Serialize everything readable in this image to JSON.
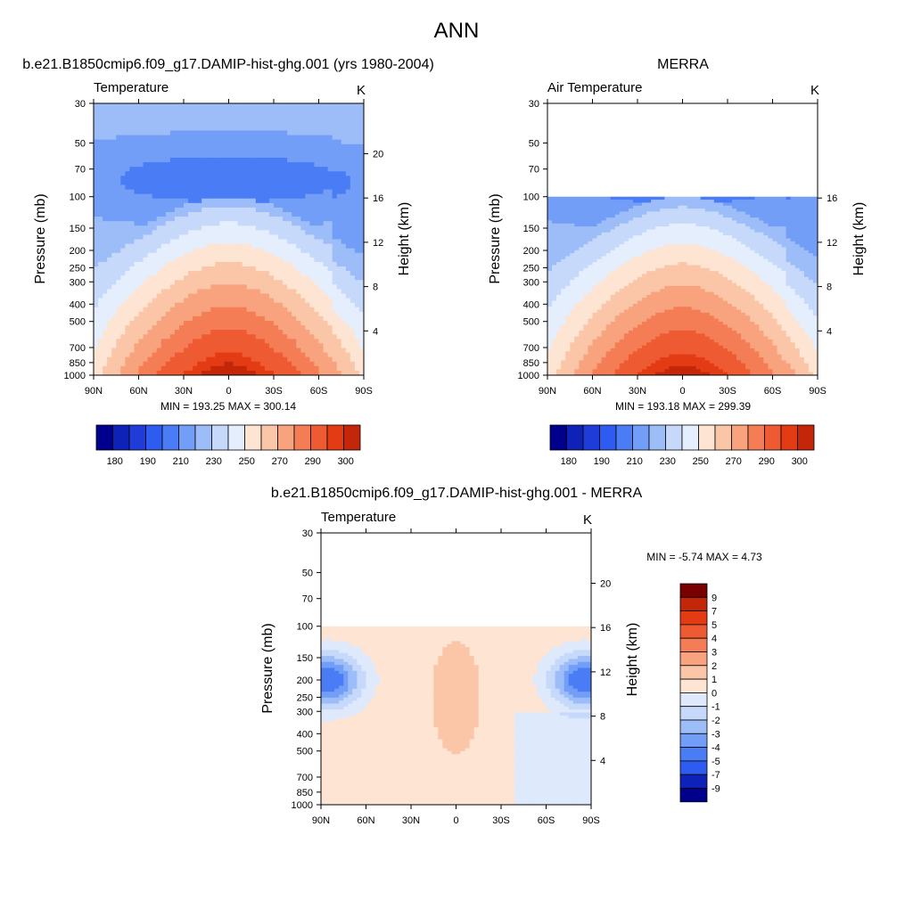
{
  "page_title": "ANN",
  "colors": {
    "cold": [
      "#00008c",
      "#0f22b8",
      "#1f3cd8",
      "#2f5cf0",
      "#4a7df5",
      "#729ef7",
      "#9dbdf9",
      "#c6d9fb",
      "#e4eefd"
    ],
    "warm": [
      "#fde4d3",
      "#fbc6a8",
      "#f8a27e",
      "#f47d56",
      "#ee5a32",
      "#e33c14",
      "#c4260a",
      "#9a1004",
      "#790000"
    ],
    "diff_neg": [
      "#00008c",
      "#0f22b8",
      "#2f5cf0",
      "#4a7df5",
      "#729ef7",
      "#9dbdf9",
      "#c6d9fb",
      "#dfe9fc"
    ],
    "diff_pos": [
      "#fde4d3",
      "#fbc6a8",
      "#f8a27e",
      "#f47d56",
      "#ee5a32",
      "#e33c14",
      "#c4260a",
      "#790000"
    ]
  },
  "chart_data": [
    {
      "type": "heatmap",
      "title": "b.e21.B1850cmip6.f09_g17.DAMIP-hist-ghg.001 (yrs 1980-2004)",
      "subtitle": "Temperature",
      "units": "K",
      "xlabel": "",
      "ylabel": "Pressure (mb)",
      "ylabel_right": "Height (km)",
      "x_ticks": [
        "90N",
        "60N",
        "30N",
        "0",
        "30S",
        "60S",
        "90S"
      ],
      "y_ticks": [
        30,
        50,
        70,
        100,
        150,
        200,
        250,
        300,
        400,
        500,
        700,
        850,
        1000
      ],
      "height_ticks": [
        4,
        8,
        12,
        16,
        20
      ],
      "ylim": [
        1000,
        30
      ],
      "xlim": [
        90,
        -90
      ],
      "pressure_top_data": 30,
      "stats": "MIN = 193.25  MAX = 300.14",
      "min": 193.25,
      "max": 300.14,
      "colorbar": {
        "labels": [
          "180",
          "190",
          "210",
          "230",
          "250",
          "270",
          "290",
          "300"
        ],
        "levels": [
          180,
          185,
          190,
          200,
          210,
          220,
          230,
          240,
          250,
          260,
          270,
          280,
          290,
          295,
          300
        ]
      }
    },
    {
      "type": "heatmap",
      "title": "MERRA",
      "subtitle": "Air Temperature",
      "units": "K",
      "xlabel": "",
      "ylabel": "Pressure (mb)",
      "ylabel_right": "Height (km)",
      "x_ticks": [
        "90N",
        "60N",
        "30N",
        "0",
        "30S",
        "60S",
        "90S"
      ],
      "y_ticks": [
        30,
        50,
        70,
        100,
        150,
        200,
        250,
        300,
        400,
        500,
        700,
        850,
        1000
      ],
      "height_ticks": [
        4,
        8,
        12,
        16
      ],
      "ylim": [
        1000,
        30
      ],
      "xlim": [
        90,
        -90
      ],
      "pressure_top_data": 100,
      "stats": "MIN = 193.18  MAX = 299.39",
      "min": 193.18,
      "max": 299.39,
      "colorbar": {
        "labels": [
          "180",
          "190",
          "210",
          "230",
          "250",
          "270",
          "290",
          "300"
        ],
        "levels": [
          180,
          185,
          190,
          200,
          210,
          220,
          230,
          240,
          250,
          260,
          270,
          280,
          290,
          295,
          300
        ]
      }
    },
    {
      "type": "heatmap",
      "title": "b.e21.B1850cmip6.f09_g17.DAMIP-hist-ghg.001 - MERRA",
      "subtitle": "Temperature",
      "units": "K",
      "xlabel": "",
      "ylabel": "Pressure (mb)",
      "ylabel_right": "Height (km)",
      "x_ticks": [
        "90N",
        "60N",
        "30N",
        "0",
        "30S",
        "60S",
        "90S"
      ],
      "y_ticks": [
        30,
        50,
        70,
        100,
        150,
        200,
        250,
        300,
        400,
        500,
        700,
        850,
        1000
      ],
      "height_ticks": [
        4,
        8,
        12,
        16,
        20
      ],
      "ylim": [
        1000,
        30
      ],
      "xlim": [
        90,
        -90
      ],
      "pressure_top_data": 100,
      "stats": "MIN =  -5.74  MAX =   4.73",
      "min": -5.74,
      "max": 4.73,
      "colorbar": {
        "labels": [
          "9",
          "7",
          "5",
          "4",
          "3",
          "2",
          "1",
          "0",
          "-1",
          "-2",
          "-3",
          "-4",
          "-5",
          "-7",
          "-9"
        ],
        "levels": [
          9,
          7,
          5,
          4,
          3,
          2,
          1,
          0,
          -1,
          -2,
          -3,
          -4,
          -5,
          -7,
          -9
        ]
      }
    }
  ]
}
